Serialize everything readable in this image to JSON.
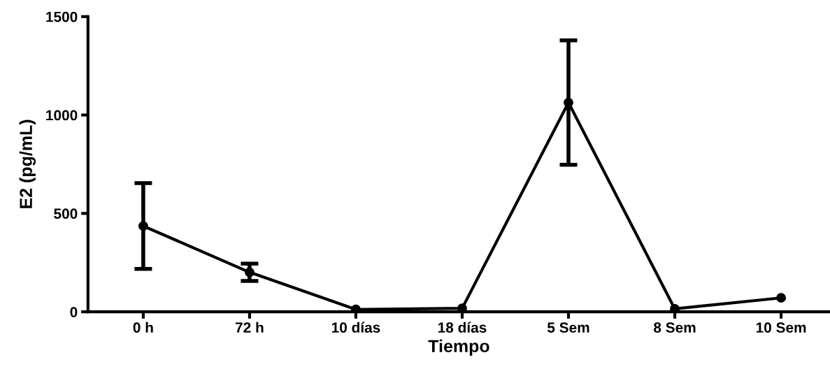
{
  "chart_data": {
    "type": "line",
    "xlabel": "Tiempo",
    "ylabel": "E2 (pg/mL)",
    "categories": [
      "0 h",
      "72 h",
      "10 días",
      "18 días",
      "5 Sem",
      "8 Sem",
      "10 Sem"
    ],
    "series": [
      {
        "color": "#000000",
        "values": [
          436,
          201,
          12,
          18,
          1063,
          15,
          71
        ],
        "errors": [
          218,
          44,
          null,
          null,
          316,
          null,
          null
        ]
      }
    ],
    "ylim": [
      0,
      1500
    ],
    "yticks": [
      0,
      500,
      1000,
      1500
    ],
    "marker": "circle",
    "line_style": "solid",
    "grid": false,
    "legend": false
  }
}
